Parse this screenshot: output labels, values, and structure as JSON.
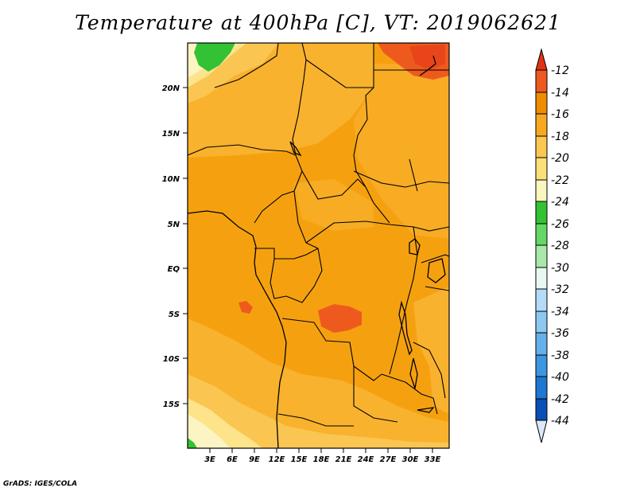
{
  "title": "Temperature at 400hPa [C], VT: 2019062621",
  "credit": "GrADS: IGES/COLA",
  "map": {
    "lat_labels": [
      "20N",
      "15N",
      "10N",
      "5N",
      "EQ",
      "5S",
      "10S",
      "15S"
    ],
    "lon_labels": [
      "3E",
      "6E",
      "9E",
      "12E",
      "15E",
      "18E",
      "21E",
      "24E",
      "27E",
      "30E",
      "33E"
    ]
  },
  "colorbar": {
    "labels": [
      "-12",
      "-14",
      "-16",
      "-18",
      "-20",
      "-22",
      "-24",
      "-26",
      "-28",
      "-30",
      "-32",
      "-34",
      "-36",
      "-38",
      "-40",
      "-42",
      "-44"
    ],
    "colors": {
      "c_12": "#ee5a1e",
      "c_14": "#f08c00",
      "c_16": "#f8a820",
      "c_18": "#fac850",
      "c_20": "#fbe07a",
      "c_22": "#fdf5c0",
      "c_24": "#33c233",
      "c_26": "#64d864",
      "c_28": "#a8e8a8",
      "c_30": "#e8f8f0",
      "c_32": "#b4dcf8",
      "c_34": "#8cc8f0",
      "c_36": "#64b0ea",
      "c_38": "#3c96e0",
      "c_40": "#1e78d2",
      "c_42": "#0a50b4",
      "c_44": "#0a1478",
      "low": "#dce8f8",
      "high": "#e23214"
    }
  }
}
